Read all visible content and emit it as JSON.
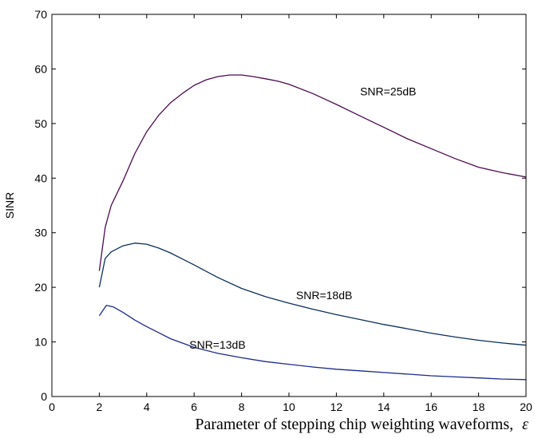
{
  "chart_data": {
    "type": "line",
    "title": "",
    "xlabel": "Parameter of stepping chip weighting waveforms,",
    "xlabel_symbol": "ε",
    "ylabel": "SINR",
    "xlim": [
      0,
      20
    ],
    "ylim": [
      0,
      70
    ],
    "xticks": [
      0,
      2,
      4,
      6,
      8,
      10,
      12,
      14,
      16,
      18,
      20
    ],
    "yticks": [
      0,
      10,
      20,
      30,
      40,
      50,
      60,
      70
    ],
    "grid": false,
    "series": [
      {
        "name": "SNR=25dB",
        "color": "#4b0a4f",
        "x": [
          2,
          2.25,
          2.5,
          3,
          3.5,
          4,
          4.5,
          5,
          5.5,
          6,
          6.5,
          7,
          7.5,
          8,
          8.5,
          9,
          9.5,
          10,
          11,
          12,
          13,
          14,
          15,
          16,
          17,
          18,
          19,
          20
        ],
        "y": [
          23,
          31,
          35,
          39.5,
          44.5,
          48.5,
          51.5,
          53.8,
          55.5,
          57,
          58,
          58.6,
          58.9,
          58.9,
          58.6,
          58.2,
          57.8,
          57.2,
          55.5,
          53.5,
          51.4,
          49.3,
          47.2,
          45.4,
          43.6,
          42,
          41,
          40.2
        ]
      },
      {
        "name": "SNR=18dB",
        "color": "#0b2f5c",
        "x": [
          2,
          2.25,
          2.5,
          3,
          3.5,
          4,
          4.5,
          5,
          5.5,
          6,
          7,
          8,
          9,
          10,
          11,
          12,
          13,
          14,
          15,
          16,
          17,
          18,
          19,
          20
        ],
        "y": [
          20,
          25.3,
          26.5,
          27.6,
          28.1,
          27.9,
          27.2,
          26.3,
          25.2,
          24.1,
          21.8,
          19.8,
          18.3,
          17.1,
          16,
          15,
          14.1,
          13.2,
          12.4,
          11.6,
          10.9,
          10.3,
          9.8,
          9.4
        ]
      },
      {
        "name": "SNR=13dB",
        "color": "#1a2a8c",
        "x": [
          2,
          2.3,
          2.6,
          3,
          3.5,
          4,
          4.5,
          5,
          6,
          7,
          8,
          9,
          10,
          11,
          12,
          13,
          14,
          15,
          16,
          17,
          18,
          19,
          20
        ],
        "y": [
          14.8,
          16.7,
          16.4,
          15.4,
          14,
          12.8,
          11.7,
          10.6,
          9,
          7.9,
          7.1,
          6.4,
          5.9,
          5.4,
          5,
          4.7,
          4.4,
          4.1,
          3.8,
          3.6,
          3.4,
          3.2,
          3.1
        ]
      }
    ],
    "annotations": [
      {
        "text": "SNR=25dB",
        "x": 13,
        "y": 55.2
      },
      {
        "text": "SNR=18dB",
        "x": 10.3,
        "y": 17.8
      },
      {
        "text": "SNR=13dB",
        "x": 5.8,
        "y": 8.8
      }
    ]
  }
}
